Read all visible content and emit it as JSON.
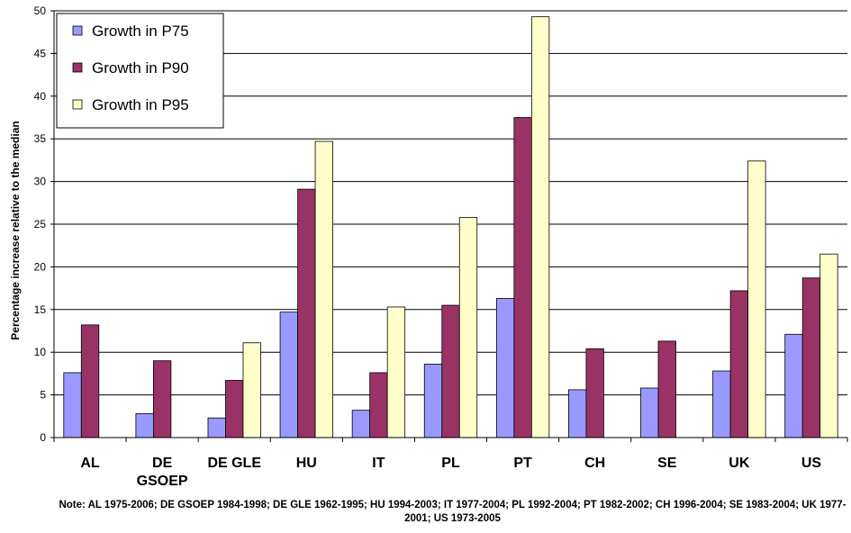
{
  "chart_data": {
    "type": "bar",
    "ylabel": "Percentage increase relative to the median",
    "ylim": [
      0,
      50
    ],
    "yticks": [
      0,
      5,
      10,
      15,
      20,
      25,
      30,
      35,
      40,
      45,
      50
    ],
    "grid": true,
    "legend_position": "top-left",
    "categories": [
      "AL",
      "DE GSOEP",
      "DE GLE",
      "HU",
      "IT",
      "PL",
      "PT",
      "CH",
      "SE",
      "UK",
      "US"
    ],
    "series": [
      {
        "name": "Growth in P75",
        "color": "#9999ff",
        "values": [
          7.6,
          2.8,
          2.3,
          14.7,
          3.2,
          8.6,
          16.3,
          5.6,
          5.8,
          7.8,
          12.1
        ]
      },
      {
        "name": "Growth in P90",
        "color": "#993366",
        "values": [
          13.2,
          9.0,
          6.7,
          29.1,
          7.6,
          15.5,
          37.5,
          10.4,
          11.3,
          17.2,
          18.7
        ]
      },
      {
        "name": "Growth in P95",
        "color": "#ffffcc",
        "values": [
          null,
          null,
          11.1,
          34.7,
          15.3,
          25.8,
          49.3,
          null,
          null,
          32.4,
          21.5
        ]
      }
    ]
  },
  "note": "Note: AL 1975-2006; DE GSOEP 1984-1998; DE GLE 1962-1995; HU 1994-2003; IT 1977-2004; PL 1992-2004; PT 1982-2002; CH 1996-2004; SE 1983-2004; UK 1977-2001; US 1973-2005"
}
